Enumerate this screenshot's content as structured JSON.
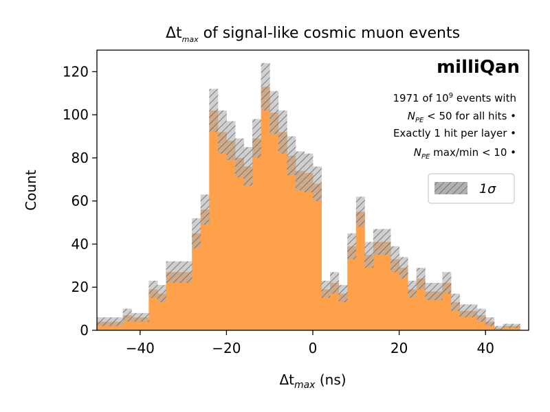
{
  "chart_data": {
    "type": "bar",
    "title": "Δt",
    "title_sub": "max",
    "title_rest": " of signal-like cosmic muon events",
    "xlabel": "Δt",
    "xlabel_sub": "max",
    "xlabel_rest": " (ns)",
    "ylabel": "Count",
    "xlim": [
      -50,
      50
    ],
    "ylim": [
      0,
      130
    ],
    "xticks": [
      -40,
      -20,
      0,
      20,
      40
    ],
    "xtick_labels": [
      "−40",
      "−20",
      "0",
      "20",
      "40"
    ],
    "yticks": [
      0,
      20,
      40,
      60,
      80,
      100,
      120
    ],
    "bin_width": 2,
    "bin_edges_start": -50,
    "values": [
      4,
      4,
      4,
      7,
      6,
      6,
      19,
      17,
      27,
      27,
      27,
      45,
      56,
      102,
      92,
      88,
      80,
      76,
      89,
      113,
      101,
      92,
      81,
      74,
      73,
      68,
      19,
      22,
      17,
      39,
      55,
      35,
      41,
      41,
      33,
      29,
      19,
      24,
      18,
      18,
      22,
      13,
      9,
      9,
      7,
      4,
      1,
      2,
      2,
      0,
      1
    ],
    "uncertainty": [
      2,
      2,
      2,
      3,
      2,
      2,
      4,
      4,
      5,
      5,
      5,
      7,
      7,
      10,
      10,
      9,
      9,
      9,
      9,
      11,
      10,
      10,
      9,
      9,
      9,
      8,
      4,
      5,
      4,
      6,
      7,
      6,
      6,
      6,
      6,
      5,
      4,
      5,
      4,
      4,
      5,
      4,
      3,
      3,
      3,
      2,
      1,
      1,
      1,
      0,
      1
    ],
    "bar_color": "#ffa04b",
    "band_color": "#b0b0b0",
    "brand": "milliQan",
    "notes": [
      {
        "pre": "1971 of 10",
        "sup": "9",
        "post": " events with"
      },
      {
        "pre": "N",
        "sub": "PE",
        "post": " < 50 for all hits •"
      },
      {
        "pre": "Exactly 1 hit per layer •"
      },
      {
        "pre": "N",
        "sub": "PE",
        "post": " max/min < 10 •"
      }
    ],
    "legend": {
      "label": "1σ",
      "position": "right"
    }
  }
}
